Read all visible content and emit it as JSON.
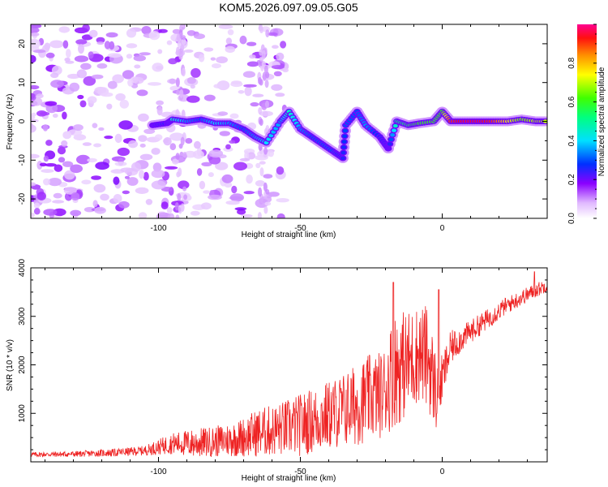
{
  "title": "KOM5.2026.097.09.05.G05",
  "chart_data": [
    {
      "type": "heatmap",
      "xlabel": "Height of straight line (km)",
      "ylabel": "Frequency (Hz)",
      "xlim": [
        -145,
        37
      ],
      "ylim": [
        -25,
        25
      ],
      "xticks": [
        -100,
        -50,
        0
      ],
      "yticks": [
        -20,
        -10,
        0,
        10,
        20
      ],
      "colorbar": {
        "label": "Normalized spectral amplitude",
        "range": [
          0,
          1
        ],
        "ticks": [
          "0.0",
          "0.2",
          "0.4",
          "0.6",
          "0.8"
        ],
        "tick_values": [
          0.0,
          0.2,
          0.4,
          0.6,
          0.8
        ]
      },
      "signal_track": {
        "description": "frequency of strongest signal vs height",
        "points": [
          {
            "x": -102,
            "y": -1,
            "amp": 0.2
          },
          {
            "x": -97,
            "y": -0.5,
            "amp": 0.25
          },
          {
            "x": -95,
            "y": 0.5,
            "amp": 0.45
          },
          {
            "x": -90,
            "y": 0,
            "amp": 0.35
          },
          {
            "x": -85,
            "y": 0.5,
            "amp": 0.3
          },
          {
            "x": -80,
            "y": -0.5,
            "amp": 0.4
          },
          {
            "x": -75,
            "y": -0.5,
            "amp": 0.35
          },
          {
            "x": -70,
            "y": -2,
            "amp": 0.3
          },
          {
            "x": -66,
            "y": -4,
            "amp": 0.35
          },
          {
            "x": -62,
            "y": -5.5,
            "amp": 0.4
          },
          {
            "x": -57,
            "y": 0,
            "amp": 0.35
          },
          {
            "x": -54,
            "y": 2.5,
            "amp": 0.45
          },
          {
            "x": -50,
            "y": -2,
            "amp": 0.35
          },
          {
            "x": -46,
            "y": -4,
            "amp": 0.3
          },
          {
            "x": -42,
            "y": -6,
            "amp": 0.3
          },
          {
            "x": -38,
            "y": -8,
            "amp": 0.3
          },
          {
            "x": -35,
            "y": -9.5,
            "amp": 0.25
          },
          {
            "x": -34,
            "y": -1,
            "amp": 0.3
          },
          {
            "x": -30,
            "y": 2.5,
            "amp": 0.3
          },
          {
            "x": -27,
            "y": -1,
            "amp": 0.35
          },
          {
            "x": -22,
            "y": -4,
            "amp": 0.25
          },
          {
            "x": -19,
            "y": -7,
            "amp": 0.2
          },
          {
            "x": -16,
            "y": 0,
            "amp": 0.5
          },
          {
            "x": -12,
            "y": -1,
            "amp": 0.55
          },
          {
            "x": -8,
            "y": -0.5,
            "amp": 0.6
          },
          {
            "x": -3,
            "y": 0,
            "amp": 0.6
          },
          {
            "x": 0,
            "y": 2.5,
            "amp": 0.6
          },
          {
            "x": 3,
            "y": 0,
            "amp": 0.9
          },
          {
            "x": 8,
            "y": 0,
            "amp": 0.95
          },
          {
            "x": 13,
            "y": 0,
            "amp": 0.95
          },
          {
            "x": 18,
            "y": 0,
            "amp": 0.9
          },
          {
            "x": 23,
            "y": 0,
            "amp": 0.75
          },
          {
            "x": 28,
            "y": 0.5,
            "amp": 0.65
          },
          {
            "x": 33,
            "y": 0,
            "amp": 0.7
          },
          {
            "x": 37,
            "y": 0,
            "amp": 0.7
          }
        ]
      }
    },
    {
      "type": "line",
      "xlabel": "Height of straight line (km)",
      "ylabel": "SNR (10 * v/v)",
      "xlim": [
        -145,
        37
      ],
      "ylim": [
        0,
        4000
      ],
      "xticks": [
        -100,
        -50,
        0
      ],
      "yticks": [
        1000,
        2000,
        3000,
        4000
      ],
      "series": [
        {
          "name": "SNR",
          "color": "#ee2222",
          "x": [
            -145,
            -130,
            -115,
            -105,
            -95,
            -88,
            -80,
            -72,
            -65,
            -58,
            -50,
            -43,
            -37,
            -30,
            -25,
            -21,
            -17,
            -12,
            -8,
            -5,
            -2,
            0,
            3,
            8,
            15,
            22,
            30,
            37
          ],
          "y": [
            150,
            160,
            190,
            230,
            380,
            380,
            420,
            480,
            600,
            660,
            760,
            900,
            1020,
            1180,
            1350,
            1400,
            1900,
            2050,
            2250,
            2150,
            1400,
            1700,
            2350,
            2600,
            2900,
            3200,
            3450,
            3650
          ],
          "spread": [
            50,
            60,
            80,
            100,
            220,
            300,
            320,
            380,
            500,
            550,
            650,
            700,
            750,
            850,
            900,
            900,
            1200,
            1100,
            1000,
            1100,
            800,
            500,
            350,
            250,
            220,
            180,
            160,
            140
          ],
          "peaks": [
            {
              "x": -17.2,
              "y": 3700
            },
            {
              "x": -1.2,
              "y": 3550
            },
            {
              "x": 32.5,
              "y": 3920
            }
          ]
        }
      ]
    }
  ]
}
